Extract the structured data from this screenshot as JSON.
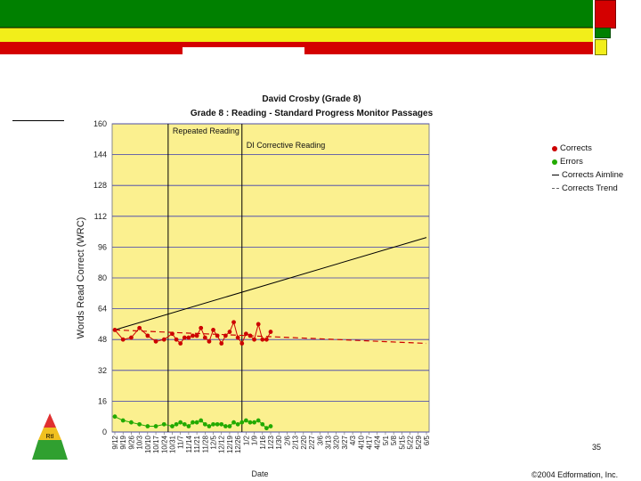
{
  "header": {
    "band_colors": {
      "green": "#008000",
      "yellow": "#f2ee1a",
      "red": "#d40000"
    }
  },
  "chart_data": {
    "type": "line",
    "title": "David Crosby (Grade 8)",
    "subtitle": "Grade 8 : Reading - Standard Progress Monitor Passages",
    "ylabel": "Words Read Correct (WRC)",
    "xlabel": "Date",
    "ylim": [
      0,
      160
    ],
    "yticks": [
      "160",
      "144",
      "128",
      "112",
      "96",
      "80",
      "64",
      "48",
      "32",
      "16",
      "0"
    ],
    "categories": [
      "9/12",
      "9/19",
      "9/26",
      "10/3",
      "10/10",
      "10/17",
      "10/24",
      "10/31",
      "11/7",
      "11/14",
      "11/21",
      "11/28",
      "12/5",
      "12/12",
      "12/19",
      "12/26",
      "1/2",
      "1/9",
      "1/16",
      "1/23",
      "1/30",
      "2/6",
      "2/13",
      "2/20",
      "2/27",
      "3/6",
      "3/13",
      "3/20",
      "3/27",
      "4/3",
      "4/10",
      "4/17",
      "4/24",
      "5/1",
      "5/8",
      "5/15",
      "5/22",
      "5/29",
      "6/5"
    ],
    "grid": true,
    "background": "#fbf08f",
    "legend_position": "right",
    "phase_lines": [
      {
        "label": "Repeated Reading",
        "index": 6.5
      },
      {
        "label": "DI Corrective Reading",
        "index": 15.5
      }
    ],
    "series": [
      {
        "name": "Corrects",
        "color": "#cc0000",
        "points": [
          [
            0,
            53
          ],
          [
            1,
            48
          ],
          [
            2,
            49
          ],
          [
            3,
            54
          ],
          [
            4,
            50
          ],
          [
            5,
            47
          ],
          [
            6,
            48
          ],
          [
            7,
            51
          ],
          [
            7.5,
            48
          ],
          [
            8,
            46
          ],
          [
            8.5,
            49
          ],
          [
            9,
            49
          ],
          [
            9.5,
            50
          ],
          [
            10,
            50
          ],
          [
            10.5,
            54
          ],
          [
            11,
            49
          ],
          [
            11.5,
            47
          ],
          [
            12,
            53
          ],
          [
            12.5,
            50
          ],
          [
            13,
            46
          ],
          [
            13.5,
            50
          ],
          [
            14,
            52
          ],
          [
            14.5,
            57
          ],
          [
            15,
            49
          ],
          [
            15.5,
            46
          ],
          [
            16,
            51
          ],
          [
            16.5,
            50
          ],
          [
            17,
            48
          ],
          [
            17.5,
            56
          ],
          [
            18,
            48
          ],
          [
            18.5,
            48
          ],
          [
            19,
            52
          ]
        ]
      },
      {
        "name": "Errors",
        "color": "#22aa00",
        "points": [
          [
            0,
            8
          ],
          [
            1,
            6
          ],
          [
            2,
            5
          ],
          [
            3,
            4
          ],
          [
            4,
            3
          ],
          [
            5,
            3
          ],
          [
            6,
            4
          ],
          [
            7,
            3
          ],
          [
            7.5,
            4
          ],
          [
            8,
            5
          ],
          [
            8.5,
            4
          ],
          [
            9,
            3
          ],
          [
            9.5,
            5
          ],
          [
            10,
            5
          ],
          [
            10.5,
            6
          ],
          [
            11,
            4
          ],
          [
            11.5,
            3
          ],
          [
            12,
            4
          ],
          [
            12.5,
            4
          ],
          [
            13,
            4
          ],
          [
            13.5,
            3
          ],
          [
            14,
            3
          ],
          [
            14.5,
            5
          ],
          [
            15,
            4
          ],
          [
            15.5,
            5
          ],
          [
            16,
            6
          ],
          [
            16.5,
            5
          ],
          [
            17,
            5
          ],
          [
            17.5,
            6
          ],
          [
            18,
            4
          ],
          [
            18.5,
            2
          ],
          [
            19,
            3
          ]
        ]
      },
      {
        "name": "Corrects Aimline",
        "color": "#000000",
        "points": [
          [
            0,
            53
          ],
          [
            38,
            101
          ]
        ]
      },
      {
        "name": "Corrects Trend",
        "color": "#cc0000",
        "points": [
          [
            0,
            53
          ],
          [
            38,
            46
          ]
        ]
      }
    ]
  },
  "footer": {
    "slide_number": "35",
    "copyright": "©2004 Edformation, Inc."
  },
  "logo": {
    "name": "rti-pyramid-logo",
    "text": "RtI"
  }
}
